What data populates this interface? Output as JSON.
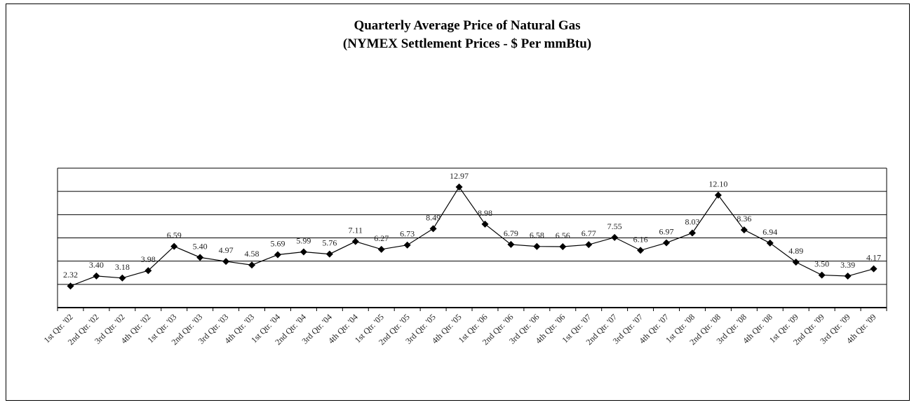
{
  "chart_data": {
    "type": "line",
    "title": "Quarterly Average Price of Natural Gas",
    "subtitle": "(NYMEX Settlement Prices - $ Per mmBtu)",
    "categories": [
      "1st Qtr. '02",
      "2nd Qtr. '02",
      "3rd Qtr. '02",
      "4th Qtr. '02",
      "1st Qtr. '03",
      "2nd Qtr. '03",
      "3rd Qtr. '03",
      "4th Qtr. '03",
      "1st Qtr. '04",
      "2nd Qtr. '04",
      "3rd Qtr. '04",
      "4th Qtr. '04",
      "1st Qtr. '05",
      "2nd Qtr. '05",
      "3rd Qtr. '05",
      "4th Qtr. '05",
      "1st Qtr. '06",
      "2nd Qtr. '06",
      "3rd Qtr. '06",
      "4th Qtr. '06",
      "1st Qtr. '07",
      "2nd Qtr. '07",
      "3rd Qtr. '07",
      "4th Qtr. '07",
      "1st Qtr. '08",
      "2nd Qtr. '08",
      "3rd Qtr. '08",
      "4th Qtr. '08",
      "1st Qtr. '09",
      "2nd Qtr. '09",
      "3rd Qtr. '09",
      "4th Qtr. '09"
    ],
    "values": [
      2.32,
      3.4,
      3.18,
      3.98,
      6.59,
      5.4,
      4.97,
      4.58,
      5.69,
      5.99,
      5.76,
      7.11,
      6.27,
      6.73,
      8.49,
      12.97,
      8.98,
      6.79,
      6.58,
      6.56,
      6.77,
      7.55,
      6.16,
      6.97,
      8.03,
      12.1,
      8.36,
      6.94,
      4.89,
      3.5,
      3.39,
      4.17
    ],
    "value_labels": [
      "2.32",
      "3.40",
      "3.18",
      "3.98",
      "6.59",
      "5.40",
      "4.97",
      "4.58",
      "5.69",
      "5.99",
      "5.76",
      "7.11",
      "6.27",
      "6.73",
      "8.49",
      "12.97",
      "8.98",
      "6.79",
      "6.58",
      "6.56",
      "6.77",
      "7.55",
      "6.16",
      "6.97",
      "8.03",
      "12.10",
      "8.36",
      "6.94",
      "4.89",
      "3.50",
      "3.39",
      "4.17"
    ],
    "color": "#000000",
    "ylim": [
      0,
      15
    ],
    "yticks": [
      0,
      2.5,
      5,
      7.5,
      10,
      12.5,
      15
    ],
    "ytick_labels": false,
    "grid": true
  }
}
